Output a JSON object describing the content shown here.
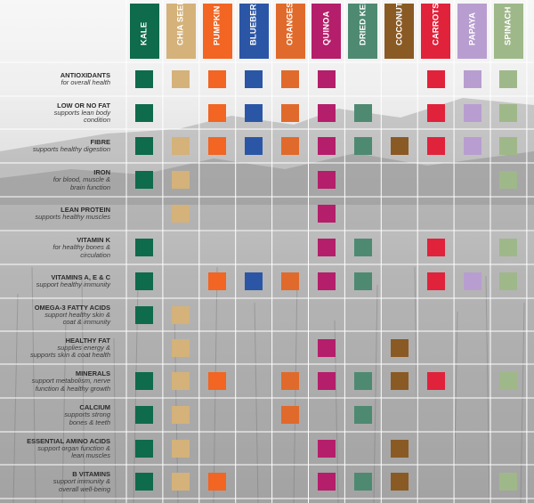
{
  "columns": [
    {
      "name": "KALE",
      "color": "#0e6b4b"
    },
    {
      "name": "CHIA SEEDS",
      "color": "#d4b27a"
    },
    {
      "name": "PUMPKIN",
      "color": "#f26522"
    },
    {
      "name": "BLUEBERRIES",
      "color": "#2b56a6"
    },
    {
      "name": "ORANGES",
      "color": "#e06a2b"
    },
    {
      "name": "QUINOA",
      "color": "#b51e6a"
    },
    {
      "name": "DRIED KELP",
      "color": "#4e8a72"
    },
    {
      "name": "COCONUT",
      "color": "#8a5a24"
    },
    {
      "name": "CARROTS",
      "color": "#e0223b"
    },
    {
      "name": "PAPAYA",
      "color": "#b89ed0"
    },
    {
      "name": "SPINACH",
      "color": "#9fb88a"
    }
  ],
  "rows": [
    {
      "title": "ANTIOXIDANTS",
      "sub": [
        "for overall health"
      ],
      "cells": [
        1,
        1,
        1,
        1,
        1,
        1,
        0,
        0,
        1,
        1,
        1
      ]
    },
    {
      "title": "LOW OR NO FAT",
      "sub": [
        "supports lean body",
        "condition"
      ],
      "cells": [
        1,
        0,
        1,
        1,
        1,
        1,
        1,
        0,
        1,
        1,
        1
      ]
    },
    {
      "title": "FIBRE",
      "sub": [
        "supports healthy digestion"
      ],
      "cells": [
        1,
        1,
        1,
        1,
        1,
        1,
        1,
        1,
        1,
        1,
        1
      ]
    },
    {
      "title": "IRON",
      "sub": [
        "for blood, muscle &",
        "brain function"
      ],
      "cells": [
        1,
        1,
        0,
        0,
        0,
        1,
        0,
        0,
        0,
        0,
        1
      ]
    },
    {
      "title": "LEAN PROTEIN",
      "sub": [
        "supports healthy muscles"
      ],
      "cells": [
        0,
        1,
        0,
        0,
        0,
        1,
        0,
        0,
        0,
        0,
        0
      ]
    },
    {
      "title": "VITAMIN K",
      "sub": [
        "for healthy bones &",
        "circulation"
      ],
      "cells": [
        1,
        0,
        0,
        0,
        0,
        1,
        1,
        0,
        1,
        0,
        1
      ]
    },
    {
      "title": "VITAMINS A, E & C",
      "sub": [
        "support healthy immunity"
      ],
      "cells": [
        1,
        0,
        1,
        1,
        1,
        1,
        1,
        0,
        1,
        1,
        1
      ]
    },
    {
      "title": "OMEGA-3 FATTY ACIDS",
      "sub": [
        "support healthy skin &",
        "coat & immunity"
      ],
      "cells": [
        1,
        1,
        0,
        0,
        0,
        0,
        0,
        0,
        0,
        0,
        0
      ]
    },
    {
      "title": "HEALTHY FAT",
      "sub": [
        "supplies energy &",
        "supports skin & coat health"
      ],
      "cells": [
        0,
        1,
        0,
        0,
        0,
        1,
        0,
        1,
        0,
        0,
        0
      ]
    },
    {
      "title": "MINERALS",
      "sub": [
        "support metabolism, nerve",
        "function & healthy growth"
      ],
      "cells": [
        1,
        1,
        1,
        0,
        1,
        1,
        1,
        1,
        1,
        0,
        1
      ]
    },
    {
      "title": "CALCIUM",
      "sub": [
        "supports strong",
        "bones & teeth"
      ],
      "cells": [
        1,
        1,
        0,
        0,
        1,
        0,
        1,
        0,
        0,
        0,
        0
      ]
    },
    {
      "title": "ESSENTIAL AMINO ACIDS",
      "sub": [
        "support organ function &",
        "lean muscles"
      ],
      "cells": [
        1,
        1,
        0,
        0,
        0,
        1,
        0,
        1,
        0,
        0,
        0
      ]
    },
    {
      "title": "B VITAMINS",
      "sub": [
        "support immunity &",
        "overall well-being"
      ],
      "cells": [
        1,
        1,
        1,
        0,
        0,
        1,
        1,
        1,
        0,
        0,
        1
      ]
    }
  ],
  "gridline_color": "#ffffff"
}
